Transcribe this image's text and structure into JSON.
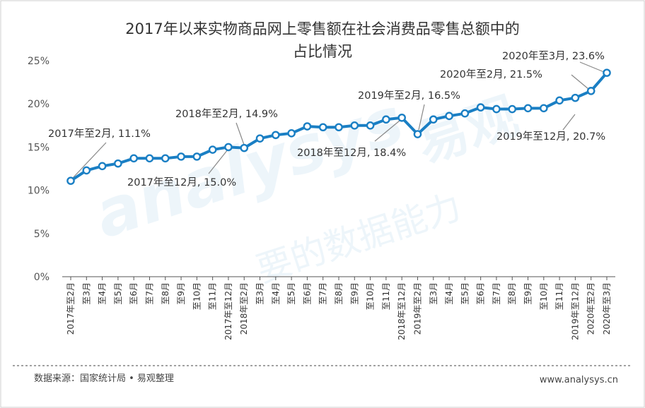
{
  "chart_data": {
    "type": "line",
    "title_line1": "2017年以来实物商品网上零售额在社会消费品零售总额中的",
    "title_line2": "占比情况",
    "yticks": [
      "0%",
      "5%",
      "10%",
      "15%",
      "20%",
      "25%"
    ],
    "ylim": [
      0,
      25
    ],
    "grid": false,
    "categories": [
      "2017年至2月",
      "至3月",
      "至4月",
      "至5月",
      "至6月",
      "至7月",
      "至8月",
      "至9月",
      "至10月",
      "至11月",
      "2017年至12月",
      "2018年至2月",
      "至3月",
      "至4月",
      "至5月",
      "至6月",
      "至7月",
      "至8月",
      "至9月",
      "至10月",
      "至11月",
      "2018年至12月",
      "2019年至2月",
      "至3月",
      "至4月",
      "至5月",
      "至6月",
      "至7月",
      "至8月",
      "至9月",
      "至10月",
      "至11月",
      "2019年至12月",
      "2020年至2月",
      "2020年至3月"
    ],
    "series": [
      {
        "values": [
          11.1,
          12.3,
          12.8,
          13.1,
          13.7,
          13.7,
          13.7,
          13.9,
          13.9,
          14.7,
          15.0,
          14.9,
          16.0,
          16.4,
          16.6,
          17.4,
          17.3,
          17.3,
          17.5,
          17.5,
          18.2,
          18.4,
          16.5,
          18.2,
          18.6,
          18.9,
          19.6,
          19.4,
          19.4,
          19.5,
          19.5,
          20.4,
          20.7,
          21.5,
          23.6
        ]
      }
    ],
    "annotations": [
      {
        "text": "2017年至2月, 11.1%",
        "index": 0
      },
      {
        "text": "2017年至12月, 15.0%",
        "index": 10
      },
      {
        "text": "2018年至2月, 14.9%",
        "index": 11
      },
      {
        "text": "2018年至12月, 18.4%",
        "index": 21
      },
      {
        "text": "2019年至2月, 16.5%",
        "index": 22
      },
      {
        "text": "2019年至12月, 20.7%",
        "index": 32
      },
      {
        "text": "2020年至2月, 21.5%",
        "index": 33
      },
      {
        "text": "2020年至3月, 23.6%",
        "index": 34
      }
    ],
    "line_color": "#1a7fc4"
  },
  "footer": {
    "source": "数据来源：国家统计局 • 易观整理",
    "url": "www.analysys.cn"
  },
  "watermark": {
    "brand": "analysys",
    "brand_cn": "易观",
    "slogan": "要的数据能力"
  }
}
